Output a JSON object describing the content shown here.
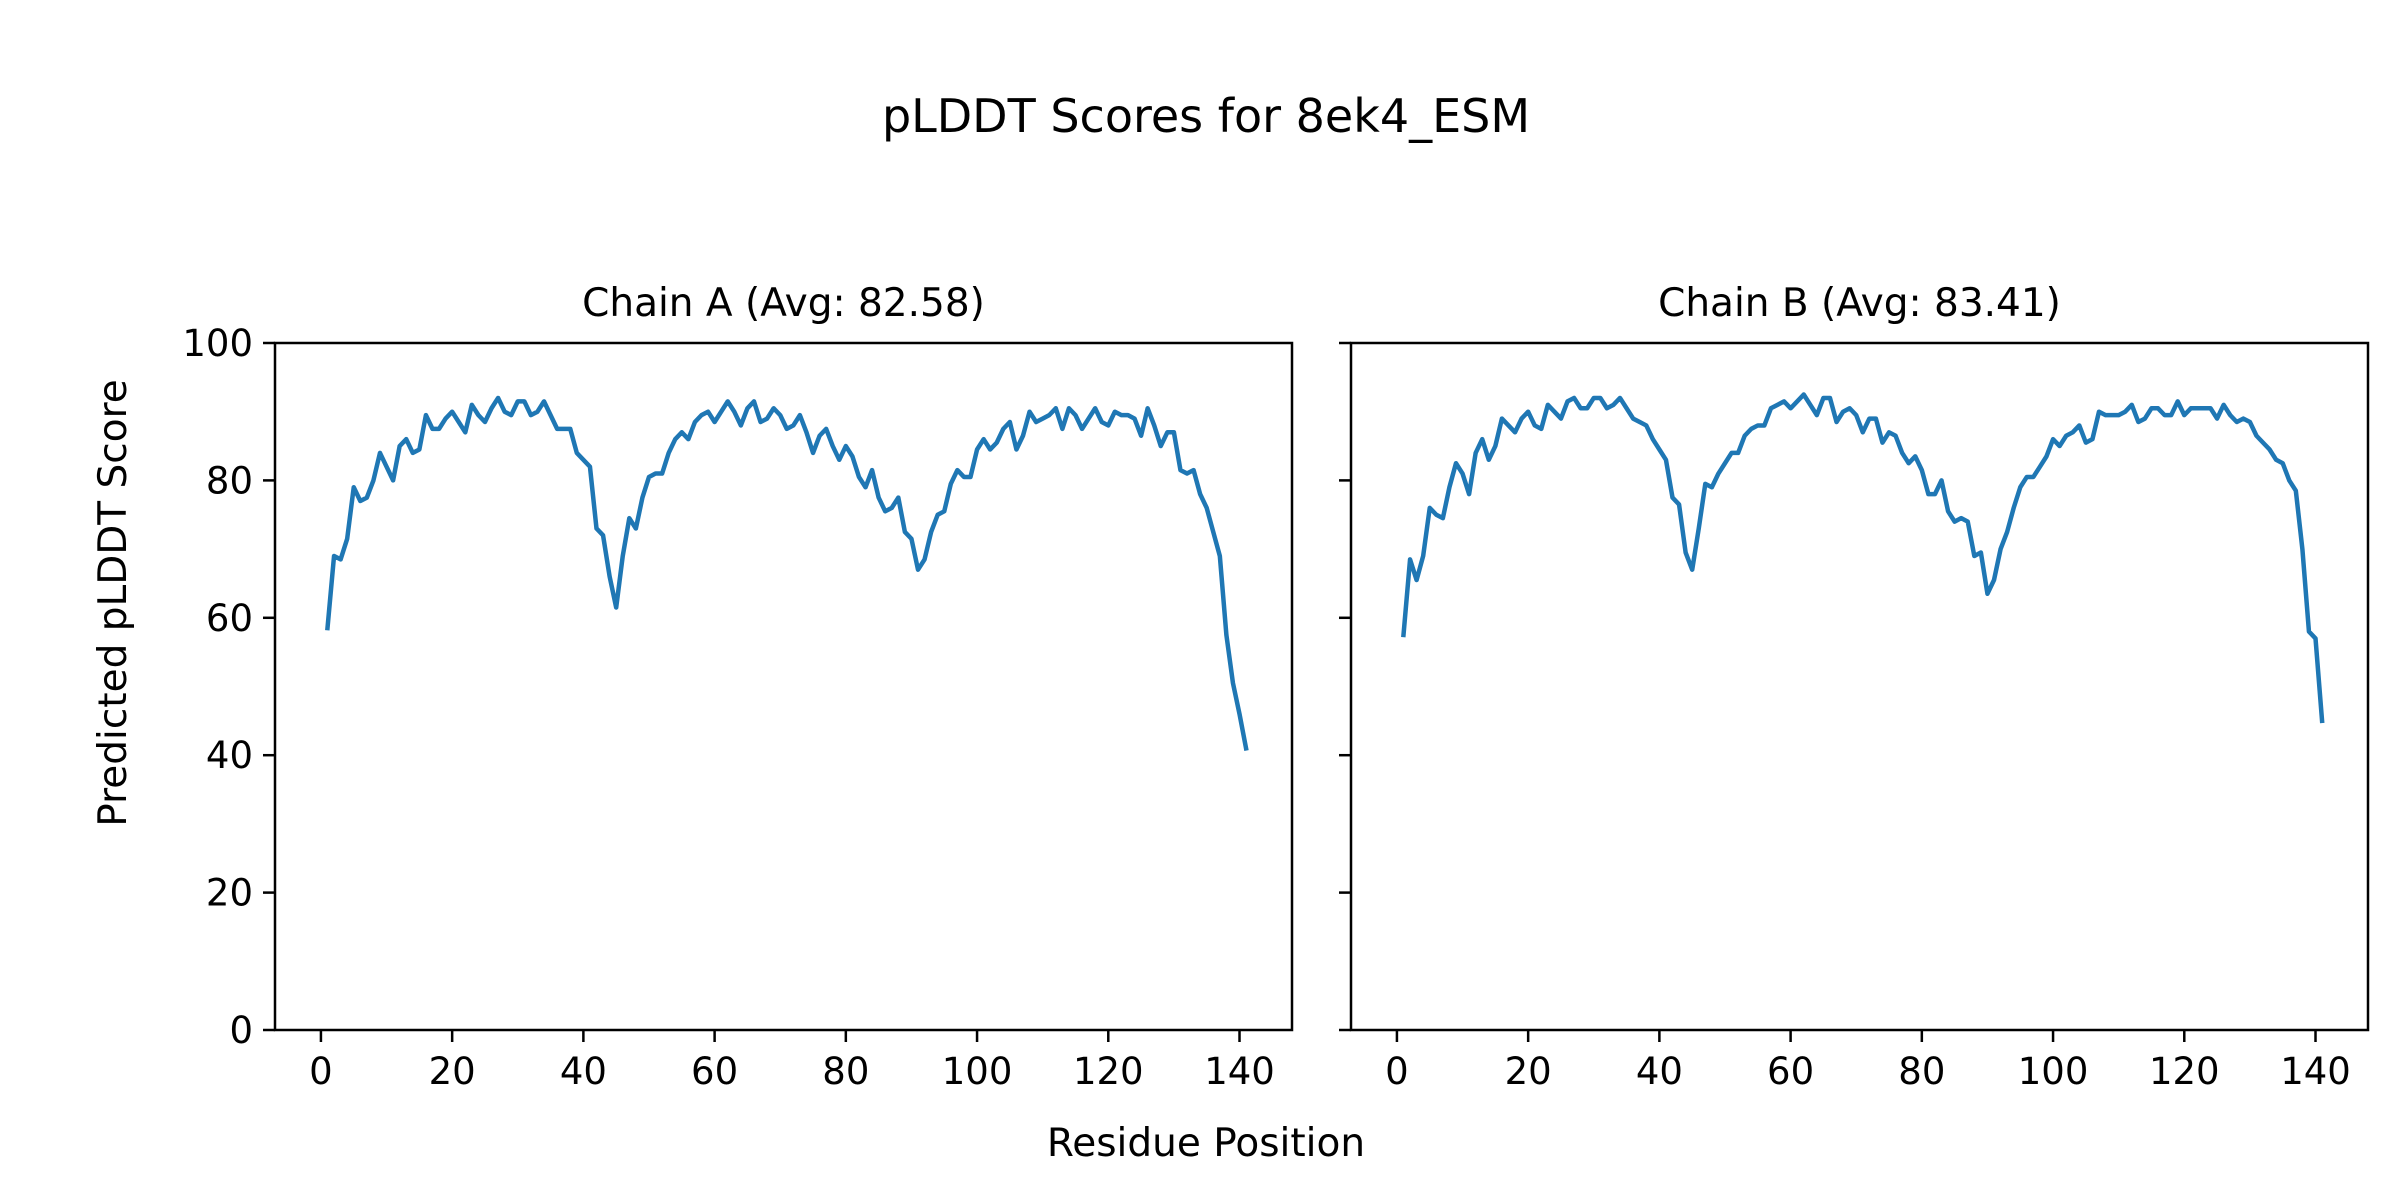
{
  "figure": {
    "title": "pLDDT Scores for 8ek4_ESM",
    "xlabel": "Residue Position",
    "ylabel": "Predicted pLDDT Score"
  },
  "colors": {
    "line": "#1f77b4"
  },
  "chart_data": [
    {
      "type": "line",
      "title": "Chain A (Avg: 82.58)",
      "xlabel": "Residue Position",
      "ylabel": "Predicted pLDDT Score",
      "xlim": [
        -7,
        148
      ],
      "ylim": [
        0,
        100
      ],
      "xticks": [
        0,
        20,
        40,
        60,
        80,
        100,
        120,
        140
      ],
      "yticks": [
        0,
        20,
        40,
        60,
        80,
        100
      ],
      "grid": false,
      "series": [
        {
          "x": [
            1,
            2,
            3,
            4,
            5,
            6,
            7,
            8,
            9,
            10,
            11,
            12,
            13,
            14,
            15,
            16,
            17,
            18,
            19,
            20,
            21,
            22,
            23,
            24,
            25,
            26,
            27,
            28,
            29,
            30,
            31,
            32,
            33,
            34,
            35,
            36,
            37,
            38,
            39,
            40,
            41,
            42,
            43,
            44,
            45,
            46,
            47,
            48,
            49,
            50,
            51,
            52,
            53,
            54,
            55,
            56,
            57,
            58,
            59,
            60,
            61,
            62,
            63,
            64,
            65,
            66,
            67,
            68,
            69,
            70,
            71,
            72,
            73,
            74,
            75,
            76,
            77,
            78,
            79,
            80,
            81,
            82,
            83,
            84,
            85,
            86,
            87,
            88,
            89,
            90,
            91,
            92,
            93,
            94,
            95,
            96,
            97,
            98,
            99,
            100,
            101,
            102,
            103,
            104,
            105,
            106,
            107,
            108,
            109,
            110,
            111,
            112,
            113,
            114,
            115,
            116,
            117,
            118,
            119,
            120,
            121,
            122,
            123,
            124,
            125,
            126,
            127,
            128,
            129,
            130,
            131,
            132,
            133,
            134,
            135,
            136,
            137,
            138,
            139,
            140,
            141
          ],
          "y": [
            58.5,
            69,
            68.5,
            71.5,
            79,
            77,
            77.5,
            80,
            84,
            82,
            80,
            85,
            86,
            84,
            84.5,
            89.5,
            87.5,
            87.5,
            89,
            90,
            88.5,
            87,
            91,
            89.5,
            88.5,
            90.5,
            92,
            90,
            89.5,
            91.5,
            91.5,
            89.5,
            90,
            91.5,
            89.5,
            87.5,
            87.5,
            87.5,
            84,
            83,
            82,
            73,
            72,
            66,
            61.5,
            69,
            74.5,
            73,
            77.5,
            80.5,
            81,
            81,
            84,
            86,
            87,
            86,
            88.5,
            89.5,
            90,
            88.5,
            90,
            91.5,
            90,
            88,
            90.5,
            91.5,
            88.5,
            89,
            90.5,
            89.5,
            87.5,
            88,
            89.5,
            87,
            84,
            86.5,
            87.5,
            85,
            83,
            85,
            83.5,
            80.5,
            79,
            81.5,
            77.5,
            75.5,
            76,
            77.5,
            72.5,
            71.5,
            67,
            68.5,
            72.5,
            75,
            75.5,
            79.5,
            81.5,
            80.5,
            80.5,
            84.5,
            86,
            84.5,
            85.5,
            87.5,
            88.5,
            84.5,
            86.5,
            90,
            88.5,
            89,
            89.5,
            90.5,
            87.5,
            90.5,
            89.5,
            87.5,
            89,
            90.5,
            88.5,
            88,
            90,
            89.5,
            89.5,
            89,
            86.5,
            90.5,
            88,
            85,
            87,
            87,
            81.5,
            81,
            81.5,
            78,
            76,
            72.5,
            69,
            57.5,
            50.5,
            46,
            41
          ]
        }
      ]
    },
    {
      "type": "line",
      "title": "Chain B (Avg: 83.41)",
      "xlabel": "Residue Position",
      "ylabel": "Predicted pLDDT Score",
      "xlim": [
        -7,
        148
      ],
      "ylim": [
        0,
        100
      ],
      "xticks": [
        0,
        20,
        40,
        60,
        80,
        100,
        120,
        140
      ],
      "yticks": [
        0,
        20,
        40,
        60,
        80,
        100
      ],
      "grid": false,
      "series": [
        {
          "x": [
            1,
            2,
            3,
            4,
            5,
            6,
            7,
            8,
            9,
            10,
            11,
            12,
            13,
            14,
            15,
            16,
            17,
            18,
            19,
            20,
            21,
            22,
            23,
            24,
            25,
            26,
            27,
            28,
            29,
            30,
            31,
            32,
            33,
            34,
            35,
            36,
            37,
            38,
            39,
            40,
            41,
            42,
            43,
            44,
            45,
            46,
            47,
            48,
            49,
            50,
            51,
            52,
            53,
            54,
            55,
            56,
            57,
            58,
            59,
            60,
            61,
            62,
            63,
            64,
            65,
            66,
            67,
            68,
            69,
            70,
            71,
            72,
            73,
            74,
            75,
            76,
            77,
            78,
            79,
            80,
            81,
            82,
            83,
            84,
            85,
            86,
            87,
            88,
            89,
            90,
            91,
            92,
            93,
            94,
            95,
            96,
            97,
            98,
            99,
            100,
            101,
            102,
            103,
            104,
            105,
            106,
            107,
            108,
            109,
            110,
            111,
            112,
            113,
            114,
            115,
            116,
            117,
            118,
            119,
            120,
            121,
            122,
            123,
            124,
            125,
            126,
            127,
            128,
            129,
            130,
            131,
            132,
            133,
            134,
            135,
            136,
            137,
            138,
            139,
            140,
            141
          ],
          "y": [
            57.5,
            68.5,
            65.5,
            69,
            76,
            75,
            74.5,
            79,
            82.5,
            81,
            78,
            84,
            86,
            83,
            85,
            89,
            88,
            87,
            89,
            90,
            88,
            87.5,
            91,
            90,
            89,
            91.5,
            92,
            90.5,
            90.5,
            92,
            92,
            90.5,
            91,
            92,
            90.5,
            89,
            88.5,
            88,
            86,
            84.5,
            83,
            77.5,
            76.5,
            69.5,
            67,
            73,
            79.5,
            79,
            81,
            82.5,
            84,
            84,
            86.5,
            87.5,
            88,
            88,
            90.5,
            91,
            91.5,
            90.5,
            91.5,
            92.5,
            91,
            89.5,
            92,
            92,
            88.5,
            90,
            90.5,
            89.5,
            87,
            89,
            89,
            85.5,
            87,
            86.5,
            84,
            82.5,
            83.5,
            81.5,
            78,
            78,
            80,
            75.5,
            74,
            74.5,
            74,
            69,
            69.5,
            63.5,
            65.5,
            70,
            72.5,
            76,
            79,
            80.5,
            80.5,
            82,
            83.5,
            86,
            85,
            86.5,
            87,
            88,
            85.5,
            86,
            90,
            89.5,
            89.5,
            89.5,
            90,
            91,
            88.5,
            89,
            90.5,
            90.5,
            89.5,
            89.5,
            91.5,
            89.5,
            90.5,
            90.5,
            90.5,
            90.5,
            89,
            91,
            89.5,
            88.5,
            89,
            88.5,
            86.5,
            85.5,
            84.5,
            83,
            82.5,
            80,
            78.5,
            70,
            58,
            57,
            45
          ]
        }
      ]
    }
  ]
}
